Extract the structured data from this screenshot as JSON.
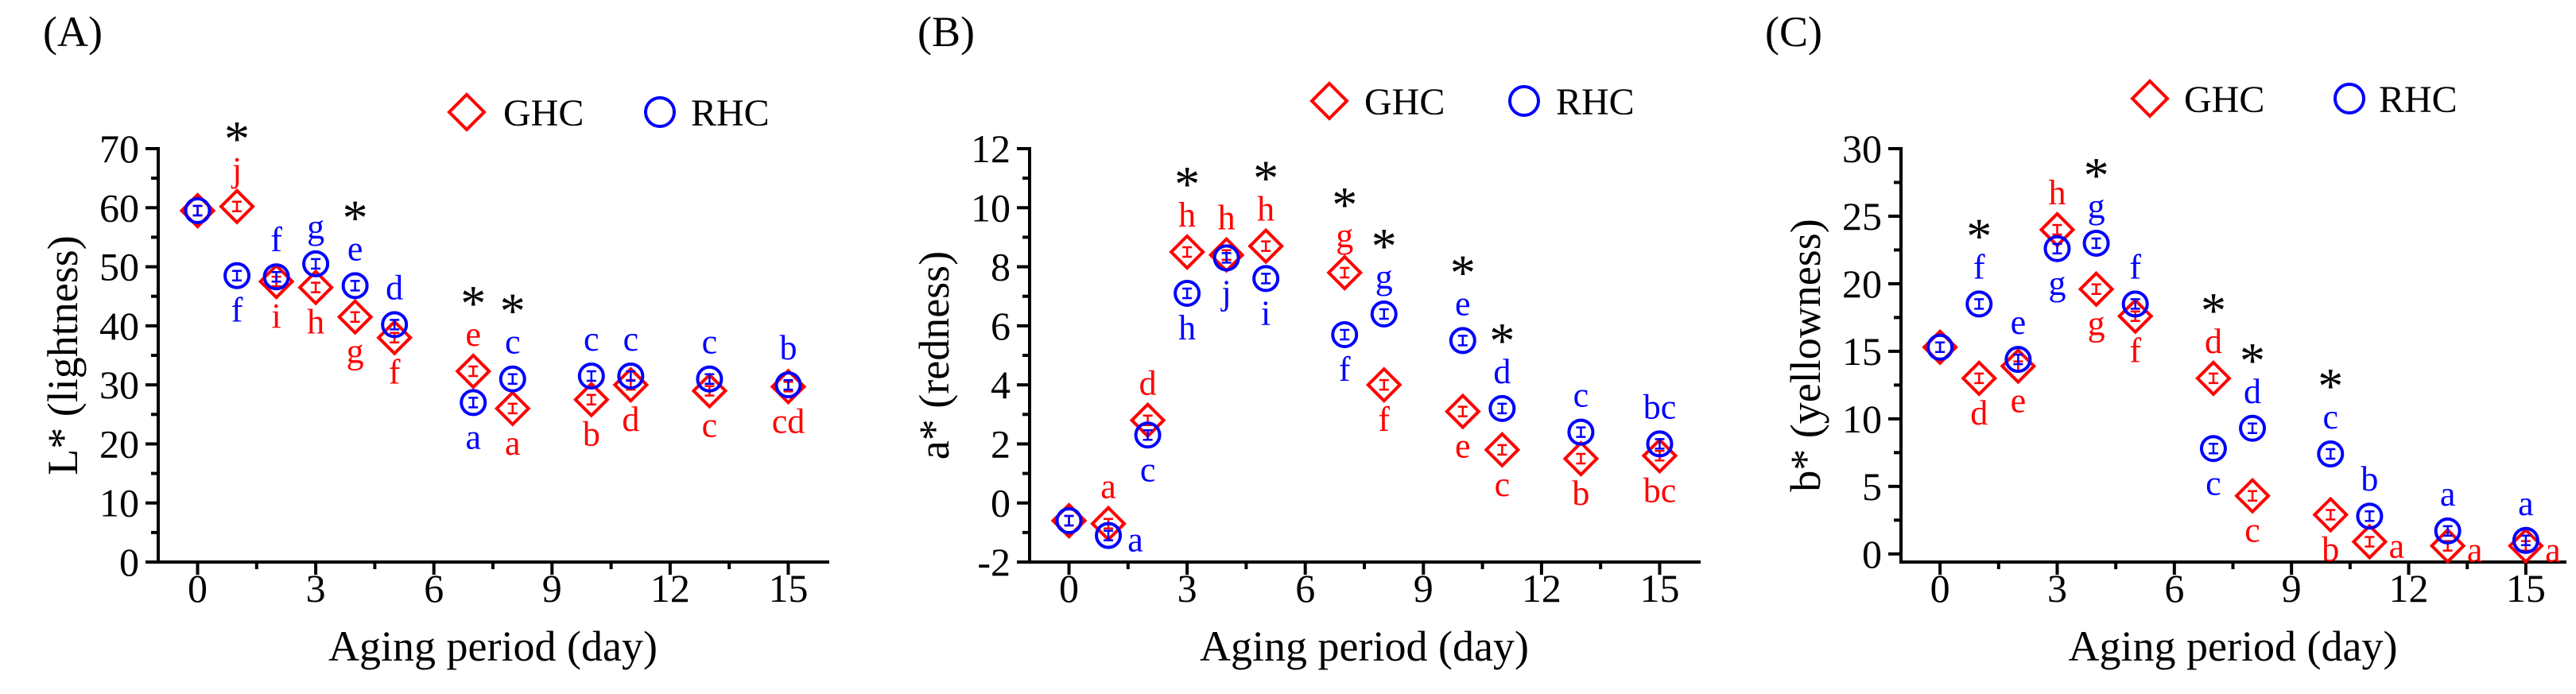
{
  "chart_data": [
    {
      "panel_label": "(A)",
      "type": "scatter",
      "xlabel": "Aging period (day)",
      "ylabel": "L* (lightness)",
      "xlim": [
        -1,
        16
      ],
      "ylim": [
        0,
        70
      ],
      "xticks": [
        0,
        3,
        6,
        9,
        12,
        15
      ],
      "yticks": [
        0,
        10,
        20,
        30,
        40,
        50,
        60,
        70
      ],
      "grid": false,
      "legend": "top-right",
      "significance": {
        "symbol": "*",
        "days": [
          1,
          4,
          7,
          8
        ]
      },
      "x": [
        0,
        1,
        2,
        3,
        4,
        5,
        7,
        8,
        10,
        11,
        13,
        15
      ],
      "series": [
        {
          "name": "GHC",
          "marker": "diamond",
          "color": "#FF0000",
          "values": [
            59.5,
            60.2,
            47.5,
            46.5,
            41.5,
            38.0,
            32.3,
            26.0,
            27.5,
            30.0,
            29.0,
            29.7
          ],
          "letters": [
            null,
            "j",
            "i",
            "h",
            "g",
            "f",
            "e",
            "a",
            "b",
            "d",
            "c",
            "cd"
          ],
          "letter_pos": [
            null,
            "above",
            "below",
            "below",
            "below",
            "below",
            "above",
            "below",
            "below",
            "below",
            "below",
            "below"
          ]
        },
        {
          "name": "RHC",
          "marker": "circle",
          "color": "#0000FF",
          "values": [
            59.5,
            48.5,
            48.3,
            50.5,
            46.8,
            40.2,
            27.0,
            31.0,
            31.5,
            31.5,
            31.0,
            30.0
          ],
          "letters": [
            null,
            "f",
            "f",
            "g",
            "e",
            "d",
            "a",
            "c",
            "c",
            "c",
            "c",
            "b"
          ],
          "letter_pos": [
            null,
            "below",
            "above",
            "above",
            "above",
            "above",
            "below",
            "above",
            "above",
            "above",
            "above",
            "above"
          ]
        }
      ]
    },
    {
      "panel_label": "(B)",
      "type": "scatter",
      "xlabel": "Aging period (day)",
      "ylabel": "a* (redness)",
      "xlim": [
        -1,
        16
      ],
      "ylim": [
        -2,
        12
      ],
      "xticks": [
        0,
        3,
        6,
        9,
        12,
        15
      ],
      "yticks": [
        -2,
        0,
        2,
        4,
        6,
        8,
        10,
        12
      ],
      "grid": false,
      "legend": "top-right",
      "significance": {
        "symbol": "*",
        "days": [
          3,
          5,
          7,
          8,
          10,
          11
        ]
      },
      "x": [
        0,
        1,
        2,
        3,
        4,
        5,
        7,
        8,
        10,
        11,
        13,
        15
      ],
      "series": [
        {
          "name": "GHC",
          "marker": "diamond",
          "color": "#FF0000",
          "values": [
            -0.6,
            -0.7,
            2.8,
            8.5,
            8.4,
            8.7,
            7.8,
            4.0,
            3.1,
            1.8,
            1.5,
            1.6
          ],
          "letters": [
            null,
            "a",
            "d",
            "h",
            "h",
            "h",
            "g",
            "f",
            "e",
            "c",
            "b",
            "bc"
          ],
          "letter_pos": [
            null,
            "above",
            "above",
            "above",
            "above",
            "above",
            "above",
            "below",
            "below",
            "below",
            "below",
            "below"
          ]
        },
        {
          "name": "RHC",
          "marker": "circle",
          "color": "#0000FF",
          "values": [
            -0.6,
            -1.1,
            2.3,
            7.1,
            8.3,
            7.6,
            5.7,
            6.4,
            5.5,
            3.2,
            2.4,
            2.0
          ],
          "letters": [
            null,
            "a",
            "c",
            "h",
            "j",
            "i",
            "f",
            "g",
            "e",
            "d",
            "c",
            "bc"
          ],
          "letter_pos": [
            null,
            "right",
            "below",
            "below",
            "below",
            "below",
            "below",
            "above",
            "above",
            "above",
            "above",
            "above"
          ]
        }
      ]
    },
    {
      "panel_label": "(C)",
      "type": "scatter",
      "xlabel": "Aging period (day)",
      "ylabel": "b* (yellowness)",
      "xlim": [
        -1,
        16
      ],
      "ylim": [
        -0.6,
        30
      ],
      "xticks": [
        0,
        3,
        6,
        9,
        12,
        15
      ],
      "yticks": [
        0,
        5,
        10,
        15,
        20,
        25,
        30
      ],
      "grid": false,
      "legend": "top-right",
      "significance": {
        "symbol": "*",
        "days": [
          1,
          4,
          7,
          8,
          10
        ]
      },
      "x": [
        0,
        1,
        2,
        3,
        4,
        5,
        7,
        8,
        10,
        11,
        13,
        15
      ],
      "series": [
        {
          "name": "GHC",
          "marker": "diamond",
          "color": "#FF0000",
          "values": [
            15.3,
            13.0,
            13.9,
            24.0,
            19.6,
            17.6,
            13.0,
            4.3,
            2.9,
            0.9,
            0.6,
            0.6
          ],
          "letters": [
            null,
            "d",
            "e",
            "h",
            "g",
            "f",
            "d",
            "c",
            "b",
            "a",
            "a",
            "a"
          ],
          "letter_pos": [
            null,
            "below",
            "below",
            "above",
            "below",
            "below",
            "above",
            "below",
            "below",
            "right",
            "right",
            "right"
          ]
        },
        {
          "name": "RHC",
          "marker": "circle",
          "color": "#0000FF",
          "values": [
            15.3,
            18.5,
            14.4,
            22.6,
            23.0,
            18.5,
            7.8,
            9.3,
            7.4,
            2.8,
            1.7,
            1.0
          ],
          "letters": [
            null,
            "f",
            "e",
            "g",
            "g",
            "f",
            "c",
            "d",
            "c",
            "b",
            "a",
            "a"
          ],
          "letter_pos": [
            null,
            "above",
            "above",
            "below",
            "above",
            "above",
            "below",
            "above",
            "above",
            "above",
            "above",
            "above"
          ]
        }
      ]
    }
  ]
}
